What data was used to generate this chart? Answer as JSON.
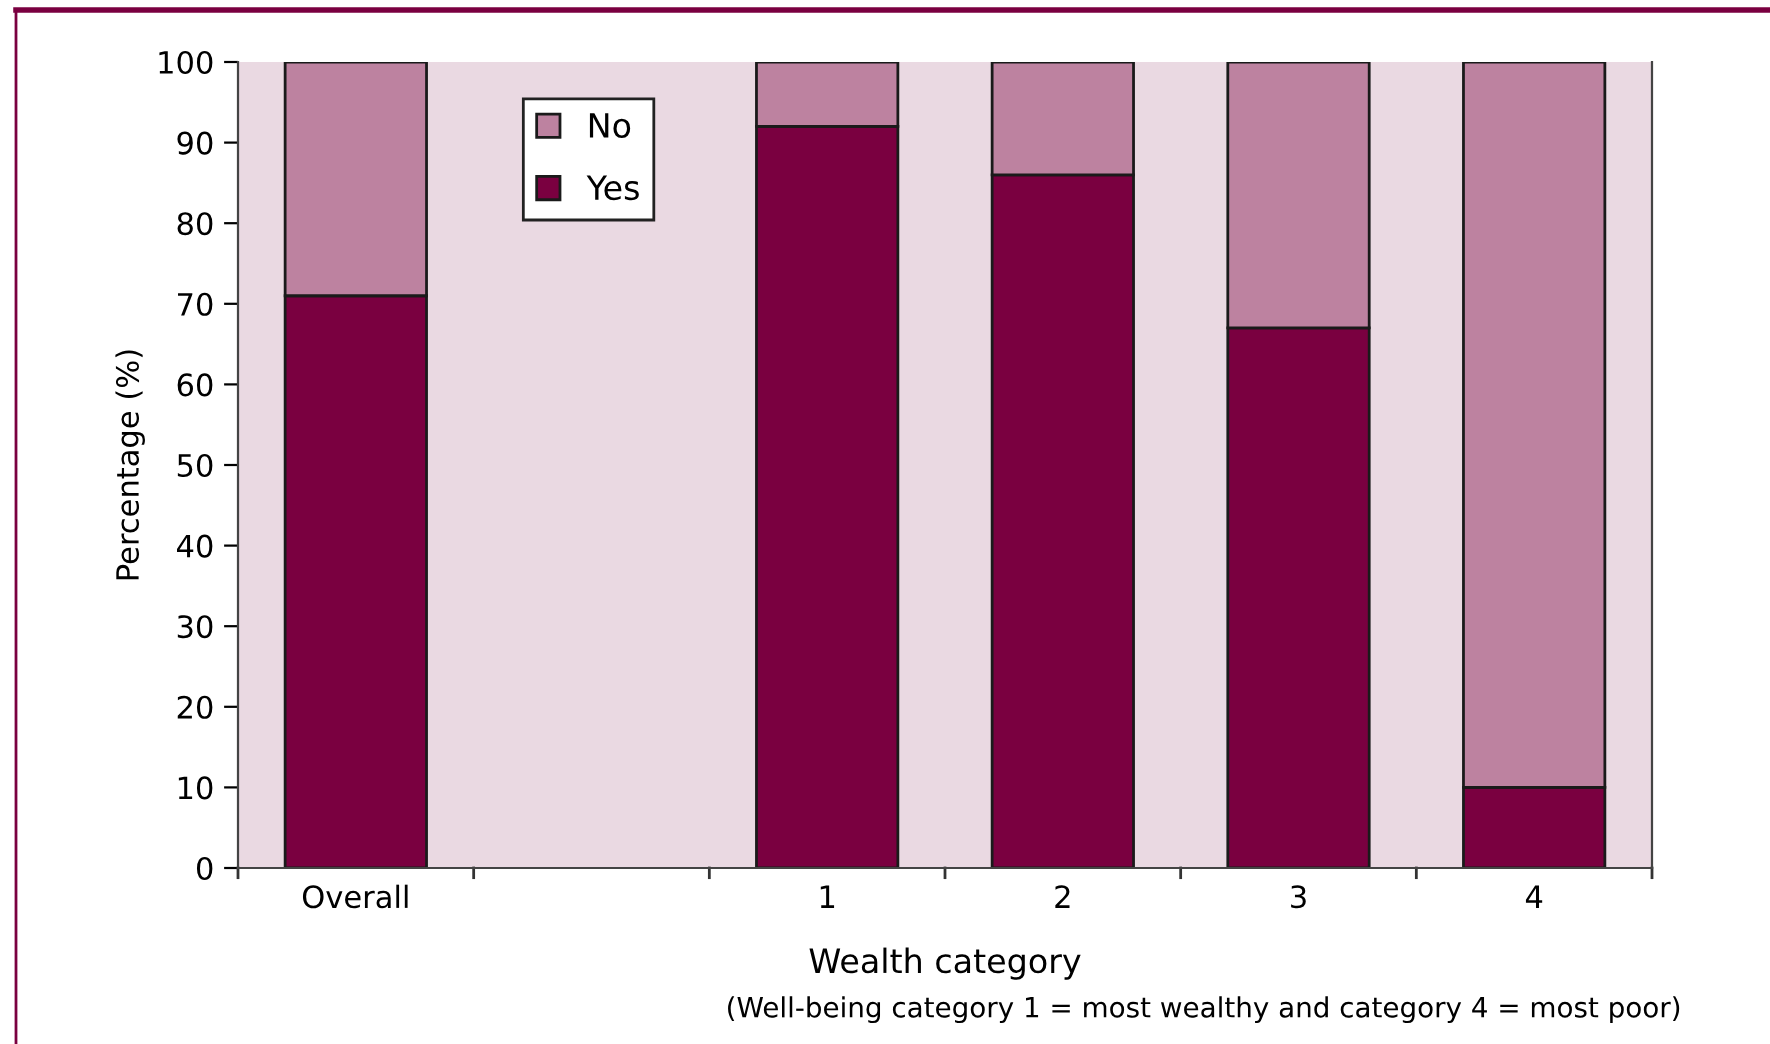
{
  "chart_data": {
    "type": "bar",
    "stacked": true,
    "xlabel": "Wealth category",
    "ylabel": "Percentage (%)",
    "annotations": [
      "(Well-being category 1 = most wealthy and category 4 = most poor)"
    ],
    "categories": [
      "Overall",
      null,
      "1",
      "2",
      "3",
      "4"
    ],
    "series": [
      {
        "name": "Yes",
        "color": "#7a0040",
        "values": [
          71,
          null,
          92,
          86,
          67,
          10
        ]
      },
      {
        "name": "No",
        "color": "#bd82a0",
        "values": [
          29,
          null,
          8,
          14,
          33,
          90
        ]
      }
    ],
    "ylim": [
      0,
      100
    ],
    "yticks": [
      0,
      10,
      20,
      30,
      40,
      50,
      60,
      70,
      80,
      90,
      100
    ],
    "grid": false,
    "legend": "top left"
  }
}
